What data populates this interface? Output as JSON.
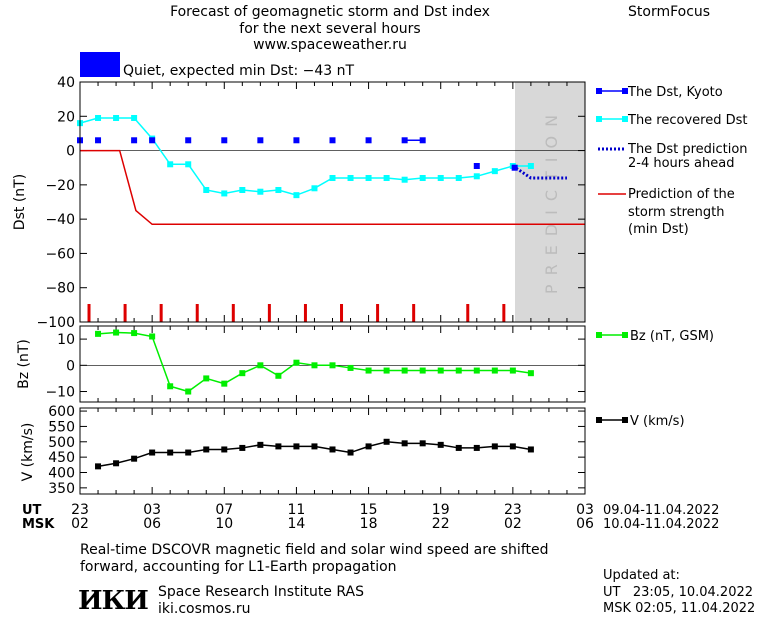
{
  "header": {
    "title_line1": "Forecast of geomagnetic storm and Dst index",
    "title_line2": "for the next several hours",
    "site": "www.spaceweather.ru",
    "brand": "StormFocus"
  },
  "status": {
    "label": "Quiet, expected min Dst: -43 nT",
    "color": "#0000ff"
  },
  "prediction_label": "PREDICTION",
  "colors": {
    "dst_kyoto": "#0000ff",
    "dst_recovered": "#00ffff",
    "dst_prediction": "#0000cc",
    "storm_strength": "#dd0000",
    "bz": "#00ee00",
    "speed": "#000000",
    "prediction_shade": "#d8d8d8"
  },
  "legend": {
    "kyoto": "The Dst, Kyoto",
    "recovered": "The recovered Dst",
    "prediction_l1": "The Dst prediction",
    "prediction_l2": "2-4 hours ahead",
    "strength_l1": "Prediction of the",
    "strength_l2": "storm strength",
    "strength_l3": "(min Dst)",
    "bz": "Bz (nT, GSM)",
    "v": "V (km/s)"
  },
  "chart_data": [
    {
      "type": "line",
      "ylabel": "Dst (nT)",
      "xlim": [
        23,
        51
      ],
      "ylim": [
        -100,
        40
      ],
      "yticks": [
        40,
        20,
        0,
        -20,
        -40,
        -60,
        -80,
        -100
      ],
      "prediction_start": 47,
      "series": [
        {
          "name": "The Dst, Kyoto",
          "style": "markers",
          "x": [
            23,
            24,
            26,
            27,
            29,
            31,
            33,
            35,
            37,
            39,
            41,
            42,
            45,
            47.1
          ],
          "y": [
            6,
            6,
            6,
            6,
            6,
            6,
            6,
            6,
            6,
            6,
            6,
            6,
            -9,
            -10
          ]
        },
        {
          "name": "The recovered Dst",
          "style": "line-markers",
          "x": [
            23,
            24,
            25,
            26,
            27,
            28,
            29,
            30,
            31,
            32,
            33,
            34,
            35,
            36,
            37,
            38,
            39,
            40,
            41,
            42,
            43,
            44,
            45,
            46,
            47,
            48
          ],
          "y": [
            16,
            19,
            19,
            19,
            7,
            -8,
            -8,
            -23,
            -25,
            -23,
            -24,
            -23,
            -26,
            -22,
            -16,
            -16,
            -16,
            -16,
            -17,
            -16,
            -16,
            -16,
            -15,
            -12,
            -9,
            -9
          ]
        },
        {
          "name": "The Dst prediction 2-4 hours ahead",
          "style": "dotted",
          "x": [
            47,
            48,
            50
          ],
          "y": [
            -9,
            -16,
            -16
          ]
        },
        {
          "name": "Prediction of the storm strength (min Dst)",
          "style": "line",
          "x": [
            23,
            25.2,
            26.1,
            27,
            51
          ],
          "y": [
            0,
            0,
            -35,
            -43,
            -43
          ]
        }
      ],
      "storm_markers_x": [
        23.5,
        25.5,
        27.5,
        29.5,
        31.5,
        33.5,
        35.5,
        37.5,
        39.5,
        41.5,
        44.5,
        46.5
      ]
    },
    {
      "type": "line",
      "ylabel": "Bz (nT)",
      "ylim": [
        -14,
        15
      ],
      "yticks": [
        10,
        0,
        -10
      ],
      "series": [
        {
          "name": "Bz (nT, GSM)",
          "x": [
            24,
            25,
            26,
            27,
            28,
            29,
            30,
            31,
            32,
            33,
            34,
            35,
            36,
            37,
            38,
            39,
            40,
            41,
            42,
            43,
            44,
            45,
            46,
            47,
            48
          ],
          "y": [
            12,
            12.5,
            12.3,
            11,
            -8,
            -10,
            -5,
            -7,
            -3,
            0,
            -4,
            1,
            0,
            0,
            -1,
            -2,
            -2,
            -2,
            -2,
            -2,
            -2,
            -2,
            -2,
            -2,
            -3
          ]
        }
      ]
    },
    {
      "type": "line",
      "ylabel": "V (km/s)",
      "ylim": [
        330,
        610
      ],
      "yticks": [
        600,
        550,
        500,
        450,
        400,
        350
      ],
      "series": [
        {
          "name": "V (km/s)",
          "x": [
            24,
            25,
            26,
            27,
            28,
            29,
            30,
            31,
            32,
            33,
            34,
            35,
            36,
            37,
            38,
            39,
            40,
            41,
            42,
            43,
            44,
            45,
            46,
            47,
            48
          ],
          "y": [
            420,
            430,
            445,
            465,
            465,
            465,
            475,
            475,
            480,
            490,
            485,
            485,
            485,
            475,
            465,
            485,
            500,
            495,
            495,
            490,
            480,
            480,
            485,
            485,
            475
          ]
        }
      ]
    }
  ],
  "axis": {
    "ut_label": "UT",
    "msk_label": "MSK",
    "ut_ticks": [
      "23",
      "03",
      "07",
      "11",
      "15",
      "19",
      "23",
      "03"
    ],
    "msk_ticks": [
      "02",
      "06",
      "10",
      "14",
      "18",
      "22",
      "02",
      "06"
    ],
    "ut_range": "09.04-11.04.2022",
    "msk_range": "10.04-11.04.2022"
  },
  "footer": {
    "note_line1": "Real-time DSCOVR magnetic field and solar wind speed are shifted",
    "note_line2": "forward, accounting for L1-Earth propagation",
    "institute": "Space Research Institute RAS",
    "institute_url": "iki.cosmos.ru",
    "logo_text": "ИКИ",
    "updated_label": "Updated at:",
    "updated_ut": "UT   23:05, 10.04.2022",
    "updated_msk": "MSK 02:05, 11.04.2022"
  }
}
